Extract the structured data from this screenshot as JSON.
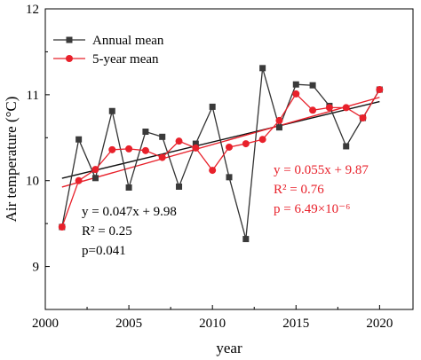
{
  "chart_data": {
    "type": "line",
    "xlabel": "year",
    "ylabel": "Air temperature (°C)",
    "xlim": [
      2000,
      2022
    ],
    "ylim": [
      8.5,
      12
    ],
    "x_ticks": [
      {
        "value": 2000,
        "label": "2000"
      },
      {
        "value": 2005,
        "label": "2005"
      },
      {
        "value": 2010,
        "label": "2010"
      },
      {
        "value": 2015,
        "label": "2015"
      },
      {
        "value": 2020,
        "label": "2020"
      }
    ],
    "y_ticks": [
      {
        "value": 9,
        "label": "9"
      },
      {
        "value": 10,
        "label": "10"
      },
      {
        "value": 11,
        "label": "11"
      },
      {
        "value": 12,
        "label": "12"
      }
    ],
    "legend": {
      "position": "top-left"
    },
    "series": [
      {
        "name": "Annual mean",
        "color": "#333333",
        "marker": "square",
        "x": [
          2001,
          2002,
          2003,
          2004,
          2005,
          2006,
          2007,
          2008,
          2009,
          2010,
          2011,
          2012,
          2013,
          2014,
          2015,
          2016,
          2017,
          2018,
          2019,
          2020
        ],
        "y": [
          9.46,
          10.48,
          10.03,
          10.81,
          9.92,
          10.57,
          10.51,
          9.93,
          10.43,
          10.86,
          10.04,
          9.32,
          11.31,
          10.62,
          11.12,
          11.11,
          10.87,
          10.4,
          10.73,
          11.06
        ]
      },
      {
        "name": "5-year mean",
        "color": "#e8212b",
        "marker": "circle",
        "x": [
          2001,
          2002,
          2003,
          2004,
          2005,
          2006,
          2007,
          2008,
          2009,
          2010,
          2011,
          2012,
          2013,
          2014,
          2015,
          2016,
          2017,
          2018,
          2019,
          2020
        ],
        "y": [
          9.46,
          10.0,
          10.13,
          10.36,
          10.37,
          10.35,
          10.27,
          10.46,
          10.38,
          10.12,
          10.39,
          10.43,
          10.48,
          10.7,
          11.01,
          10.82,
          10.85,
          10.85,
          10.73,
          11.06
        ]
      }
    ],
    "trendlines": [
      {
        "series": "Annual mean",
        "color": "#111111",
        "x": [
          2001,
          2020
        ],
        "y": [
          10.027,
          10.92
        ]
      },
      {
        "series": "5-year mean",
        "color": "#e8212b",
        "x": [
          2001,
          2020
        ],
        "y": [
          9.925,
          10.97
        ]
      }
    ],
    "annotations": [
      {
        "lines": [
          "y = 0.047x + 9.98",
          "R² = 0.25",
          "p=0.041"
        ],
        "color": "#000000"
      },
      {
        "lines": [
          "y = 0.055x + 9.87",
          "R² = 0.76",
          "p = 6.49×10⁻⁶"
        ],
        "color": "#e8212b"
      }
    ]
  }
}
